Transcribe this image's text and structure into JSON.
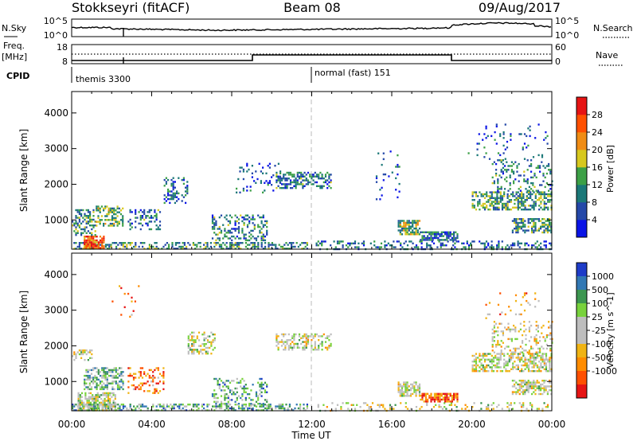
{
  "header": {
    "station": "Stokkseyri (fitACF)",
    "beam": "Beam 08",
    "date": "09/Aug/2017"
  },
  "strip_sky": {
    "left_label": "N.Sky",
    "left_top": "10^5",
    "left_bottom": "10^0",
    "right_top": "10^5",
    "right_bottom": "10^0",
    "right_label": "N.Search"
  },
  "strip_freq": {
    "label_line1": "Freq.",
    "label_line2": "[MHz]",
    "left_top": "18",
    "left_bottom": "8",
    "right_top": "60",
    "right_bottom": "0",
    "right_label": "Nave"
  },
  "cpid": {
    "label": "CPID",
    "segments": [
      {
        "start_hour": 0,
        "text": "themis 3300"
      },
      {
        "start_hour": 12,
        "text": "normal (fast) 151"
      }
    ]
  },
  "x_axis": {
    "title": "Time UT",
    "ticks": [
      "00:00",
      "04:00",
      "08:00",
      "12:00",
      "16:00",
      "20:00",
      "00:00"
    ]
  },
  "chart_data": [
    {
      "type": "heatmap",
      "name": "power",
      "ylabel": "Slant Range [km]",
      "yticks": [
        1000,
        2000,
        3000,
        4000
      ],
      "ylim": [
        180,
        4600
      ],
      "xlim_hours": [
        0,
        24
      ],
      "grid": false,
      "colorbar": {
        "label": "Power [dB]",
        "ticks": [
          "4",
          "8",
          "12",
          "16",
          "20",
          "24",
          "28"
        ],
        "colors": [
          "#0a14e6",
          "#2448a8",
          "#1b7878",
          "#3ca046",
          "#d7c81e",
          "#f08c14",
          "#ff5000",
          "#e61414"
        ]
      },
      "regions": [
        {
          "t0": 0.0,
          "t1": 11.8,
          "r0": 190,
          "r1": 380,
          "density": 0.45,
          "level": 0.35
        },
        {
          "t0": 0.6,
          "t1": 1.6,
          "r0": 190,
          "r1": 560,
          "density": 0.85,
          "level": 0.8
        },
        {
          "t0": 0.0,
          "t1": 1.2,
          "r0": 600,
          "r1": 1300,
          "density": 0.5,
          "level": 0.35
        },
        {
          "t0": 1.2,
          "t1": 2.6,
          "r0": 850,
          "r1": 1400,
          "density": 0.55,
          "level": 0.45
        },
        {
          "t0": 2.8,
          "t1": 4.4,
          "r0": 750,
          "r1": 1300,
          "density": 0.35,
          "level": 0.3
        },
        {
          "t0": 4.6,
          "t1": 5.8,
          "r0": 1500,
          "r1": 2200,
          "density": 0.35,
          "level": 0.25
        },
        {
          "t0": 7.0,
          "t1": 9.8,
          "r0": 450,
          "r1": 1150,
          "density": 0.35,
          "level": 0.3
        },
        {
          "t0": 8.2,
          "t1": 10.4,
          "r0": 1750,
          "r1": 2600,
          "density": 0.12,
          "level": 0.2
        },
        {
          "t0": 10.2,
          "t1": 13.0,
          "r0": 1900,
          "r1": 2350,
          "density": 0.5,
          "level": 0.3
        },
        {
          "t0": 12.2,
          "t1": 24.0,
          "r0": 190,
          "r1": 420,
          "density": 0.3,
          "level": 0.25
        },
        {
          "t0": 15.2,
          "t1": 16.4,
          "r0": 1500,
          "r1": 3000,
          "density": 0.08,
          "level": 0.2
        },
        {
          "t0": 16.3,
          "t1": 17.4,
          "r0": 580,
          "r1": 1000,
          "density": 0.75,
          "level": 0.45
        },
        {
          "t0": 17.4,
          "t1": 19.3,
          "r0": 440,
          "r1": 680,
          "density": 0.7,
          "level": 0.25
        },
        {
          "t0": 20.0,
          "t1": 24.0,
          "r0": 1300,
          "r1": 1800,
          "density": 0.55,
          "level": 0.4
        },
        {
          "t0": 21.0,
          "t1": 24.0,
          "r0": 1800,
          "r1": 2700,
          "density": 0.25,
          "level": 0.3
        },
        {
          "t0": 22.0,
          "t1": 24.0,
          "r0": 650,
          "r1": 1050,
          "density": 0.6,
          "level": 0.35
        },
        {
          "t0": 19.8,
          "t1": 23.8,
          "r0": 2700,
          "r1": 3700,
          "density": 0.05,
          "level": 0.2
        }
      ]
    },
    {
      "type": "heatmap",
      "name": "velocity",
      "ylabel": "Slant Range [km]",
      "yticks": [
        1000,
        2000,
        3000,
        4000
      ],
      "ylim": [
        180,
        4600
      ],
      "xlim_hours": [
        0,
        24
      ],
      "grid": false,
      "colorbar": {
        "label": "Velocity [m s^-1]",
        "ticks": [
          "1000",
          "500",
          "100",
          "25",
          "-25",
          "-100",
          "-500",
          "-1000"
        ],
        "colors": [
          "#1e3cc8",
          "#3278b4",
          "#3c9650",
          "#78d23c",
          "#bebebe",
          "#bebebe",
          "#f0b414",
          "#ff8c00",
          "#ff5000",
          "#e61414"
        ]
      },
      "regions": [
        {
          "t0": 0.0,
          "t1": 11.8,
          "r0": 190,
          "r1": 380,
          "density": 0.45,
          "level": 0.3
        },
        {
          "t0": 0.3,
          "t1": 2.2,
          "r0": 190,
          "r1": 700,
          "density": 0.7,
          "level": 0.45
        },
        {
          "t0": 0.6,
          "t1": 2.6,
          "r0": 800,
          "r1": 1400,
          "density": 0.5,
          "level": 0.35
        },
        {
          "t0": 2.8,
          "t1": 4.6,
          "r0": 700,
          "r1": 1400,
          "density": 0.3,
          "level": 0.8
        },
        {
          "t0": 5.8,
          "t1": 7.2,
          "r0": 1800,
          "r1": 2400,
          "density": 0.4,
          "level": 0.5
        },
        {
          "t0": 0.0,
          "t1": 1.0,
          "r0": 1600,
          "r1": 1900,
          "density": 0.4,
          "level": 0.5
        },
        {
          "t0": 7.0,
          "t1": 9.8,
          "r0": 300,
          "r1": 1100,
          "density": 0.3,
          "level": 0.3
        },
        {
          "t0": 10.2,
          "t1": 13.0,
          "r0": 1900,
          "r1": 2350,
          "density": 0.45,
          "level": 0.5
        },
        {
          "t0": 12.2,
          "t1": 24.0,
          "r0": 190,
          "r1": 420,
          "density": 0.2,
          "level": 0.5
        },
        {
          "t0": 16.3,
          "t1": 17.4,
          "r0": 580,
          "r1": 1000,
          "density": 0.7,
          "level": 0.5
        },
        {
          "t0": 17.4,
          "t1": 19.3,
          "r0": 440,
          "r1": 680,
          "density": 0.8,
          "level": 0.85
        },
        {
          "t0": 20.0,
          "t1": 24.0,
          "r0": 1300,
          "r1": 1800,
          "density": 0.55,
          "level": 0.5
        },
        {
          "t0": 21.0,
          "t1": 24.0,
          "r0": 1800,
          "r1": 2700,
          "density": 0.25,
          "level": 0.55
        },
        {
          "t0": 22.0,
          "t1": 24.0,
          "r0": 650,
          "r1": 1050,
          "density": 0.6,
          "level": 0.5
        },
        {
          "t0": 2.0,
          "t1": 3.4,
          "r0": 2800,
          "r1": 3700,
          "density": 0.06,
          "level": 0.8
        },
        {
          "t0": 20.5,
          "t1": 23.5,
          "r0": 2800,
          "r1": 3500,
          "density": 0.06,
          "level": 0.7
        }
      ]
    }
  ]
}
